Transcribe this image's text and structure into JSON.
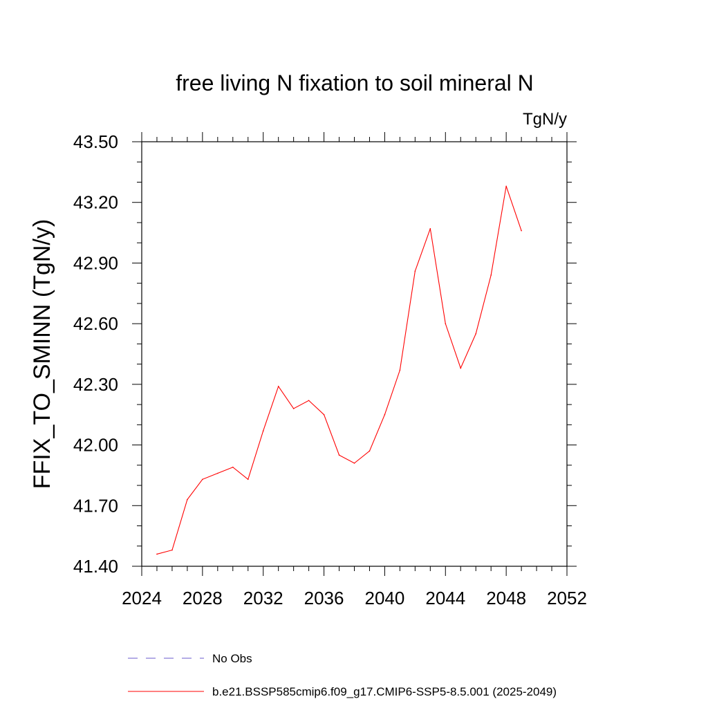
{
  "chart_data": {
    "type": "line",
    "title": "free living N fixation to soil mineral N",
    "units_label": "TgN/y",
    "ylabel": "FFIX_TO_SMINN  (TgN/y)",
    "xlabel": "",
    "xlim": [
      2024,
      2052
    ],
    "ylim": [
      41.4,
      43.5
    ],
    "x_ticks": [
      2024,
      2028,
      2032,
      2036,
      2040,
      2044,
      2048,
      2052
    ],
    "x_tick_labels": [
      "2024",
      "2028",
      "2032",
      "2036",
      "2040",
      "2044",
      "2048",
      "2052"
    ],
    "y_ticks": [
      41.4,
      41.7,
      42.0,
      42.3,
      42.6,
      42.9,
      43.2,
      43.5
    ],
    "y_tick_labels": [
      "41.40",
      "41.70",
      "42.00",
      "42.30",
      "42.60",
      "42.90",
      "43.20",
      "43.50"
    ],
    "grid": false,
    "legend_position": "bottom",
    "series": [
      {
        "name": "b.e21.BSSP585cmip6.f09_g17.CMIP6-SSP5-8.5.001 (2025-2049)",
        "color": "#ff0000",
        "style": "solid",
        "x": [
          2025,
          2026,
          2027,
          2028,
          2029,
          2030,
          2031,
          2032,
          2033,
          2034,
          2035,
          2036,
          2037,
          2038,
          2039,
          2040,
          2041,
          2042,
          2043,
          2044,
          2045,
          2046,
          2047,
          2048,
          2049
        ],
        "values": [
          41.46,
          41.48,
          41.73,
          41.83,
          41.86,
          41.89,
          41.83,
          42.07,
          42.29,
          42.18,
          42.22,
          42.15,
          41.95,
          41.91,
          41.97,
          42.15,
          42.37,
          42.86,
          43.07,
          42.6,
          42.38,
          42.55,
          42.84,
          43.28,
          43.06
        ]
      }
    ],
    "legend": [
      {
        "label": "No Obs",
        "color": "#6a5acd",
        "style": "dashed"
      },
      {
        "label": "b.e21.BSSP585cmip6.f09_g17.CMIP6-SSP5-8.5.001 (2025-2049)",
        "color": "#ff0000",
        "style": "solid"
      }
    ]
  }
}
